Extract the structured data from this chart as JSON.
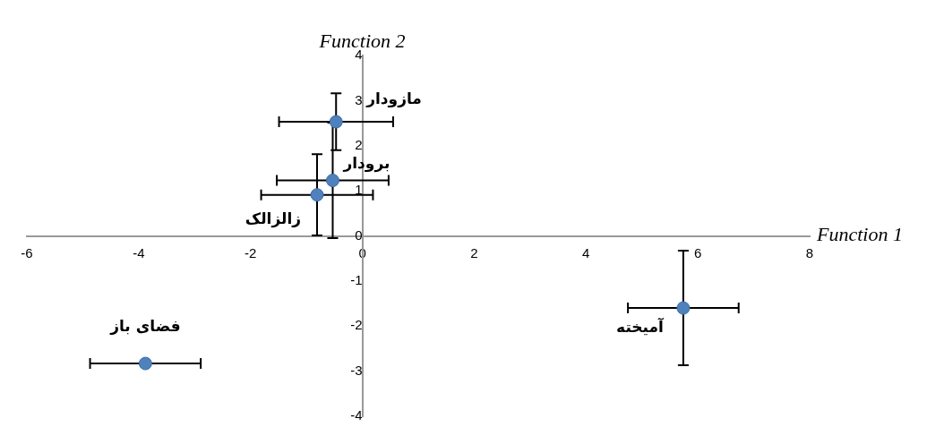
{
  "chart_data": {
    "type": "scatter",
    "xlabel": "Function 1",
    "ylabel": "Function 2",
    "x": [
      -0.47,
      -0.53,
      -0.81,
      -3.88,
      5.74
    ],
    "series": [
      {
        "color": "#4f81bd",
        "values": [
          2.53,
          1.23,
          0.91,
          -2.83,
          -1.6
        ],
        "errors": [
          0.63,
          1.28,
          0.9,
          null,
          1.27
        ],
        "xerrors": [
          1.02,
          1.0,
          1.0,
          0.99,
          0.99
        ]
      }
    ],
    "annotations": [
      {
        "text": "مازودار",
        "x": -0.47,
        "y": 2.53
      },
      {
        "text": "برودار",
        "x": -0.53,
        "y": 1.23
      },
      {
        "text": "زالزالک",
        "x": -0.81,
        "y": 0.91
      },
      {
        "text": "فضای باز",
        "x": -3.88,
        "y": -2.83
      },
      {
        "text": "آمیخته",
        "x": 5.74,
        "y": -1.6
      }
    ],
    "xlim": [
      -6,
      8
    ],
    "xticks": [
      -6,
      -4,
      -2,
      0,
      2,
      4,
      6,
      8
    ],
    "ylim": [
      -4,
      4
    ],
    "yticks": [
      -4,
      -3,
      -2,
      -1,
      0,
      1,
      2,
      3,
      4
    ],
    "grid": false,
    "legend": false,
    "marker": "circle"
  }
}
